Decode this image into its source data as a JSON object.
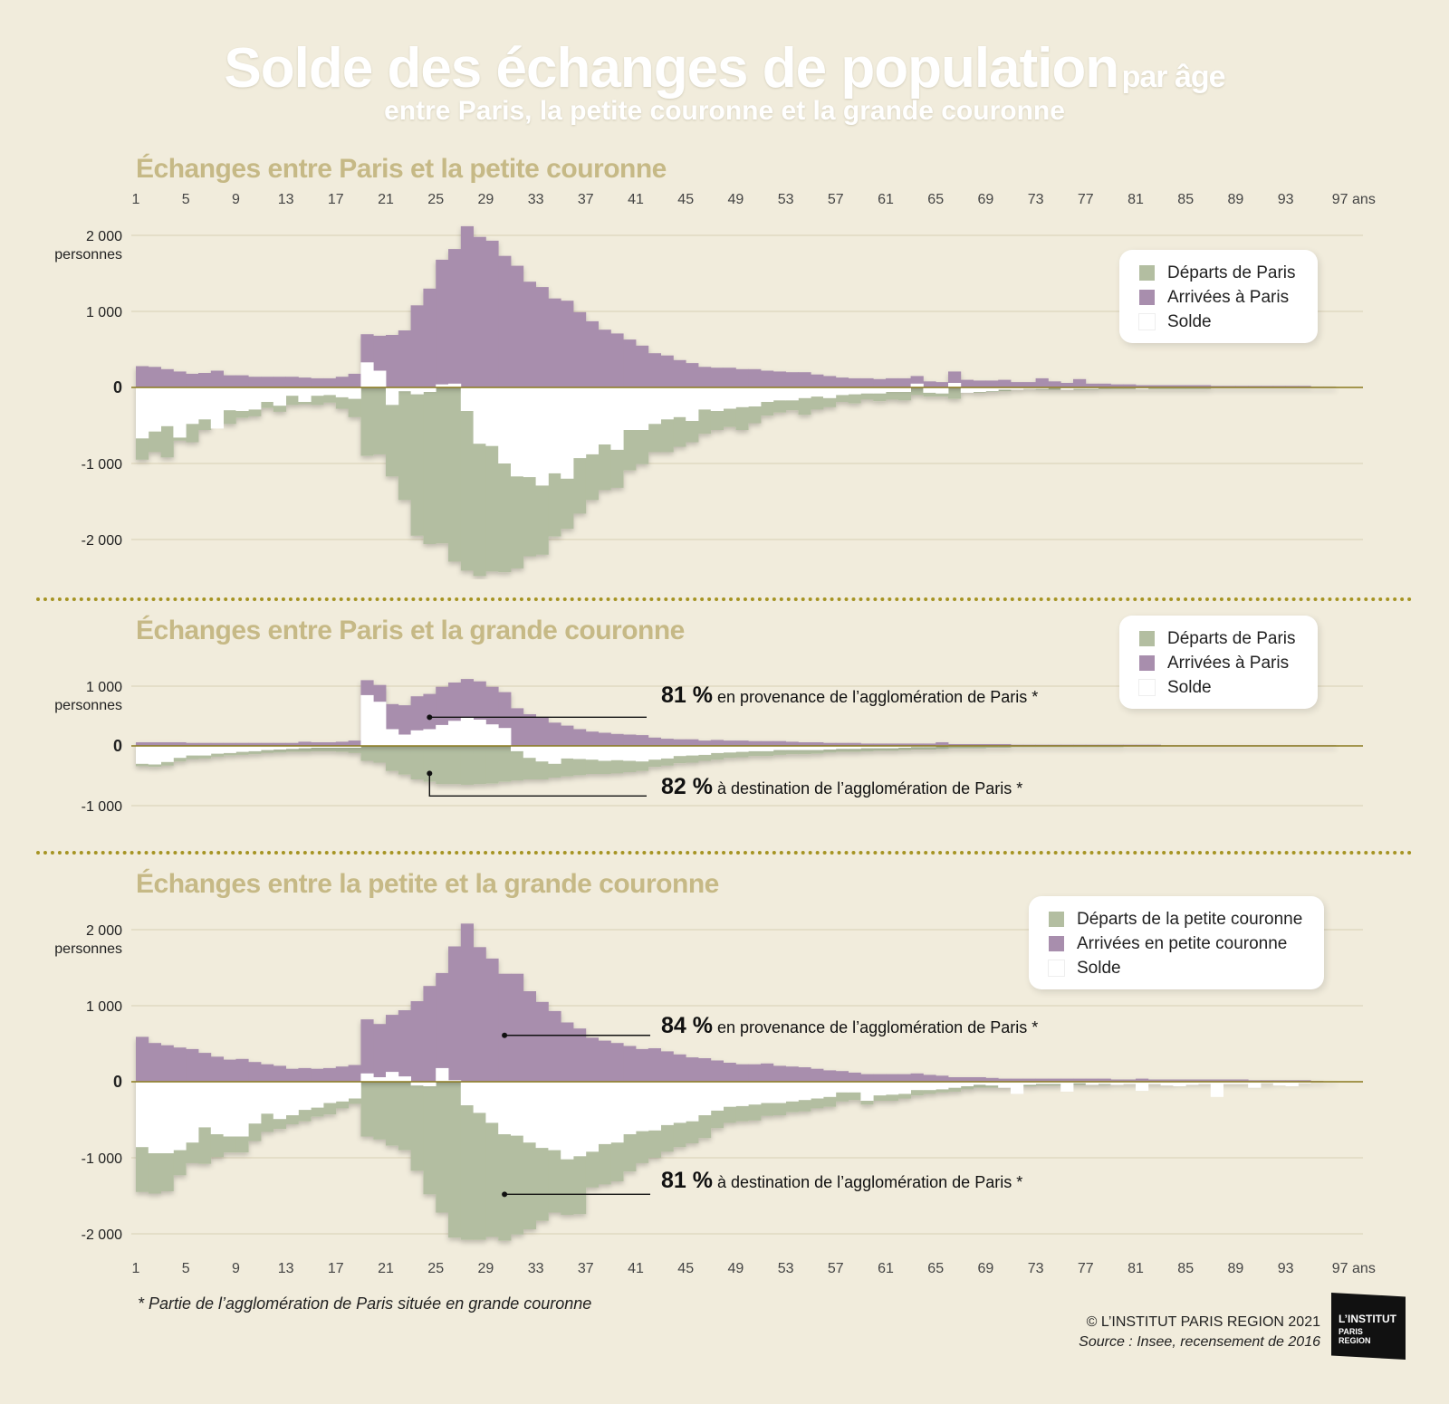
{
  "title": {
    "main": "Solde des échanges de population",
    "main_suffix": "par âge",
    "subtitle": "entre Paris, la petite couronne et la grande couronne"
  },
  "age_ticks": [
    "1",
    "5",
    "9",
    "13",
    "17",
    "21",
    "25",
    "29",
    "33",
    "37",
    "41",
    "45",
    "49",
    "53",
    "57",
    "61",
    "65",
    "69",
    "73",
    "77",
    "81",
    "85",
    "89",
    "93",
    "97 ans"
  ],
  "colors": {
    "departs": "#b3bea1",
    "arrivees": "#a88ead",
    "solde": "#ffffff",
    "background": "#f1ecdc",
    "title_section": "#c6b986",
    "divider": "#a69424"
  },
  "chart_data": [
    {
      "type": "bar",
      "title": "Échanges entre Paris et la petite couronne",
      "ylabel": "personnes",
      "ylim": [
        -2500,
        2200
      ],
      "yticks": [
        {
          "v": 2000,
          "label": "2 000"
        },
        {
          "v": 1000,
          "label": "1 000"
        },
        {
          "v": 0,
          "label": "0"
        },
        {
          "v": -1000,
          "label": "-1 000"
        },
        {
          "v": -2000,
          "label": "-2 000"
        }
      ],
      "x_start_age": 1,
      "series": [
        {
          "name": "Départs de Paris",
          "values": [
            -950,
            -850,
            -920,
            -700,
            -720,
            -560,
            -450,
            -480,
            -400,
            -380,
            -270,
            -320,
            -230,
            -220,
            -230,
            -200,
            -280,
            -390,
            -900,
            -880,
            -1170,
            -1480,
            -1950,
            -2060,
            -2050,
            -2290,
            -2410,
            -2480,
            -2420,
            -2430,
            -2380,
            -2220,
            -2200,
            -1960,
            -1860,
            -1660,
            -1480,
            -1350,
            -1320,
            -1090,
            -1010,
            -850,
            -850,
            -780,
            -720,
            -610,
            -560,
            -520,
            -560,
            -470,
            -370,
            -330,
            -300,
            -360,
            -290,
            -260,
            -190,
            -210,
            -160,
            -180,
            -160,
            -170,
            -100,
            -120,
            -120,
            -150,
            -60,
            -70,
            -60,
            -50,
            -30,
            -20,
            -30,
            -30,
            -30,
            -30,
            -30,
            -20,
            -20,
            -20,
            -20,
            -20,
            -20,
            -20,
            -20,
            -20,
            -10,
            -10,
            -10,
            -10,
            -10,
            -10,
            -10,
            -10,
            -10,
            -10
          ]
        },
        {
          "name": "Arrivées à Paris",
          "values": [
            280,
            270,
            240,
            210,
            180,
            190,
            220,
            160,
            160,
            140,
            140,
            140,
            140,
            130,
            120,
            120,
            140,
            180,
            700,
            680,
            690,
            750,
            1080,
            1300,
            1680,
            1820,
            2120,
            1980,
            1930,
            1730,
            1600,
            1390,
            1320,
            1170,
            1140,
            990,
            870,
            760,
            710,
            630,
            550,
            450,
            420,
            360,
            320,
            270,
            260,
            260,
            240,
            240,
            220,
            210,
            200,
            200,
            170,
            150,
            130,
            120,
            120,
            110,
            120,
            120,
            150,
            80,
            70,
            210,
            100,
            90,
            90,
            100,
            70,
            70,
            120,
            80,
            60,
            110,
            50,
            50,
            40,
            40,
            30,
            30,
            30,
            30,
            30,
            30,
            20,
            20,
            20,
            20,
            20,
            20,
            20,
            20,
            10,
            10
          ]
        },
        {
          "name": "Solde",
          "values": [
            -670,
            -580,
            -510,
            -660,
            -480,
            -420,
            -540,
            -300,
            -310,
            -290,
            -190,
            -240,
            -110,
            -190,
            -110,
            -100,
            -130,
            -150,
            330,
            220,
            -230,
            -50,
            -90,
            -60,
            40,
            50,
            -310,
            -740,
            -770,
            -1000,
            -1170,
            -1180,
            -1290,
            -1130,
            -1200,
            -930,
            -880,
            -750,
            -820,
            -560,
            -560,
            -480,
            -420,
            -390,
            -440,
            -290,
            -310,
            -280,
            -260,
            -250,
            -190,
            -170,
            -170,
            -140,
            -120,
            -140,
            -100,
            -90,
            -80,
            -80,
            -60,
            -60,
            50,
            -70,
            -80,
            60,
            -70,
            -60,
            -50,
            -30,
            -30,
            -20,
            -20,
            -10,
            -30,
            -20,
            -20,
            -10,
            -10,
            -10,
            -20,
            -10,
            -10,
            -10,
            -10,
            -10,
            -10,
            -10,
            -10,
            -10,
            -10,
            -10,
            -10,
            -10,
            -10,
            -10
          ]
        }
      ]
    },
    {
      "type": "bar",
      "title": "Échanges entre Paris et la grande couronne",
      "ylabel": "personnes",
      "ylim": [
        -1100,
        1150
      ],
      "yticks": [
        {
          "v": 1000,
          "label": "1 000"
        },
        {
          "v": 0,
          "label": "0"
        },
        {
          "v": -1000,
          "label": "-1 000"
        }
      ],
      "x_start_age": 1,
      "series": [
        {
          "name": "Départs de Paris",
          "values": [
            -340,
            -350,
            -330,
            -260,
            -220,
            -210,
            -180,
            -160,
            -150,
            -140,
            -120,
            -110,
            -100,
            -100,
            -90,
            -90,
            -100,
            -120,
            -250,
            -280,
            -420,
            -480,
            -560,
            -600,
            -640,
            -640,
            -650,
            -640,
            -630,
            -600,
            -580,
            -560,
            -560,
            -530,
            -510,
            -490,
            -470,
            -470,
            -460,
            -440,
            -420,
            -350,
            -330,
            -290,
            -280,
            -250,
            -230,
            -200,
            -190,
            -170,
            -170,
            -150,
            -140,
            -140,
            -130,
            -110,
            -100,
            -100,
            -90,
            -80,
            -80,
            -70,
            -60,
            -60,
            -50,
            -40,
            -40,
            -40,
            -30,
            -30,
            -20,
            -20,
            -20,
            -20,
            -20,
            -20,
            -20,
            -20,
            -20,
            -10,
            -10,
            -10,
            -10,
            -10,
            -10,
            -10,
            -10,
            -10,
            -10,
            -10,
            -10,
            -10,
            -10,
            -10,
            -10,
            -10
          ]
        },
        {
          "name": "Arrivées à Paris",
          "values": [
            60,
            60,
            60,
            60,
            50,
            50,
            50,
            50,
            50,
            50,
            50,
            50,
            50,
            70,
            60,
            60,
            70,
            90,
            1100,
            1020,
            700,
            680,
            830,
            870,
            990,
            1060,
            1120,
            1080,
            990,
            900,
            630,
            530,
            470,
            390,
            340,
            280,
            240,
            220,
            200,
            190,
            180,
            140,
            120,
            110,
            110,
            90,
            100,
            90,
            90,
            80,
            80,
            80,
            70,
            60,
            60,
            50,
            50,
            50,
            40,
            40,
            40,
            40,
            40,
            40,
            60,
            30,
            30,
            30,
            30,
            30,
            20,
            20,
            20,
            20,
            20,
            20,
            20,
            20,
            20,
            20,
            20,
            20,
            10,
            10,
            10,
            10,
            10,
            10,
            10,
            10,
            10,
            10,
            10,
            10,
            10,
            10
          ]
        },
        {
          "name": "Solde",
          "values": [
            -300,
            -310,
            -270,
            -200,
            -160,
            -160,
            -130,
            -120,
            -100,
            -90,
            -70,
            -60,
            -50,
            -40,
            -30,
            -30,
            -30,
            -30,
            850,
            740,
            280,
            190,
            260,
            280,
            350,
            420,
            470,
            440,
            360,
            300,
            -90,
            -200,
            -260,
            -300,
            -210,
            -220,
            -230,
            -250,
            -240,
            -250,
            -260,
            -230,
            -210,
            -170,
            -160,
            -150,
            -120,
            -110,
            -100,
            -90,
            -90,
            -70,
            -70,
            -70,
            -70,
            -60,
            -50,
            -50,
            -40,
            -40,
            -40,
            -30,
            -20,
            -20,
            10,
            -10,
            -10,
            -10,
            -10,
            -10,
            -10,
            -10,
            -10,
            -10,
            -10,
            -10,
            -10,
            -10,
            -10,
            -10,
            -10,
            -10,
            -10,
            -10,
            -10,
            -10,
            -10,
            -10,
            -10,
            -10,
            -10,
            -10,
            -10,
            -10,
            -10,
            -10
          ]
        }
      ]
    },
    {
      "type": "bar",
      "title": "Échanges entre la petite et la grande couronne",
      "ylabel": "personnes",
      "ylim": [
        -2500,
        2300
      ],
      "yticks": [
        {
          "v": 2000,
          "label": "2 000"
        },
        {
          "v": 1000,
          "label": "1 000"
        },
        {
          "v": 0,
          "label": "0"
        },
        {
          "v": -1000,
          "label": "-1 000"
        },
        {
          "v": -2000,
          "label": "-2 000"
        }
      ],
      "x_start_age": 1,
      "series": [
        {
          "name": "Départs de la petite couronne",
          "values": [
            -1450,
            -1470,
            -1440,
            -1230,
            -1070,
            -1080,
            -990,
            -930,
            -930,
            -780,
            -660,
            -620,
            -560,
            -520,
            -460,
            -430,
            -350,
            -290,
            -720,
            -760,
            -840,
            -900,
            -1170,
            -1480,
            -1720,
            -2050,
            -2080,
            -2080,
            -2040,
            -2090,
            -2010,
            -1940,
            -1830,
            -1720,
            -1750,
            -1740,
            -1390,
            -1350,
            -1310,
            -1180,
            -1070,
            -1000,
            -920,
            -860,
            -810,
            -740,
            -610,
            -540,
            -520,
            -510,
            -450,
            -440,
            -400,
            -390,
            -350,
            -330,
            -260,
            -240,
            -300,
            -250,
            -250,
            -220,
            -180,
            -160,
            -140,
            -130,
            -100,
            -80,
            -80,
            -80,
            -60,
            -60,
            -50,
            -50,
            -40,
            -40,
            -40,
            -40,
            -30,
            -30,
            -30,
            -30,
            -30,
            -20,
            -20,
            -20,
            -20,
            -20,
            -20,
            -20,
            -20,
            -10,
            -10,
            -10,
            -10,
            -10
          ]
        },
        {
          "name": "Arrivées en petite couronne",
          "values": [
            590,
            510,
            480,
            450,
            430,
            380,
            330,
            290,
            300,
            260,
            230,
            210,
            170,
            180,
            170,
            180,
            200,
            220,
            820,
            760,
            880,
            940,
            1060,
            1260,
            1430,
            1780,
            2080,
            1770,
            1620,
            1420,
            1420,
            1190,
            1050,
            930,
            780,
            700,
            580,
            540,
            510,
            470,
            430,
            440,
            400,
            360,
            320,
            310,
            280,
            250,
            230,
            230,
            240,
            210,
            200,
            190,
            170,
            150,
            140,
            120,
            100,
            100,
            100,
            100,
            110,
            90,
            80,
            60,
            60,
            60,
            50,
            40,
            40,
            40,
            40,
            40,
            40,
            40,
            40,
            40,
            30,
            30,
            40,
            30,
            30,
            30,
            30,
            30,
            30,
            30,
            30,
            20,
            20,
            20,
            20,
            20,
            10
          ]
        },
        {
          "name": "Solde",
          "values": [
            -860,
            -940,
            -940,
            -900,
            -800,
            -600,
            -690,
            -720,
            -720,
            -550,
            -420,
            -490,
            -440,
            -370,
            -340,
            -280,
            -260,
            -220,
            110,
            60,
            130,
            70,
            -50,
            -60,
            180,
            20,
            -310,
            -410,
            -540,
            -690,
            -710,
            -800,
            -870,
            -900,
            -1020,
            -980,
            -920,
            -820,
            -800,
            -690,
            -650,
            -640,
            -570,
            -540,
            -520,
            -440,
            -380,
            -330,
            -320,
            -300,
            -280,
            -280,
            -260,
            -240,
            -220,
            -200,
            -140,
            -140,
            -250,
            -180,
            -170,
            -160,
            -110,
            -110,
            -100,
            -80,
            -60,
            -40,
            -50,
            -80,
            -160,
            -40,
            -30,
            -30,
            -130,
            -20,
            -40,
            -30,
            -40,
            -30,
            -120,
            -30,
            -50,
            -60,
            -40,
            -30,
            -200,
            -30,
            -30,
            -80,
            -20,
            -50,
            -60,
            -20,
            -10,
            -10
          ]
        }
      ]
    }
  ],
  "panels": [
    {
      "title": "Échanges entre Paris et la petite couronne",
      "legend": [
        "Départs de Paris",
        "Arrivées à Paris",
        "Solde"
      ]
    },
    {
      "title": "Échanges entre Paris et la grande couronne",
      "legend": [
        "Départs de Paris",
        "Arrivées à Paris",
        "Solde"
      ],
      "annotations": [
        {
          "pct": "81 %",
          "text": "en provenance de l’agglomération de Paris *"
        },
        {
          "pct": "82 %",
          "text": "à destination de l’agglomération de Paris *"
        }
      ]
    },
    {
      "title": "Échanges entre la petite et la grande couronne",
      "legend": [
        "Départs de la petite couronne",
        "Arrivées en petite couronne",
        "Solde"
      ],
      "annotations": [
        {
          "pct": "84 %",
          "text": "en provenance de l’agglomération de Paris *"
        },
        {
          "pct": "81 %",
          "text": "à destination de l’agglomération de Paris *"
        }
      ]
    }
  ],
  "footnote": "* Partie de l’agglomération de Paris située en grande couronne",
  "credit": "© L’INSTITUT PARIS REGION 2021",
  "source": "Source : Insee, recensement de 2016",
  "logo": {
    "line1": "L’INSTITUT",
    "line2": "PARIS",
    "line3": "REGION"
  }
}
